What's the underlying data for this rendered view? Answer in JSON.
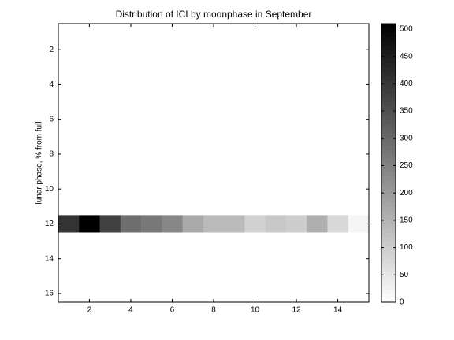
{
  "chart_data": {
    "type": "heatmap",
    "title": "Distribution of ICI by moonphase in September",
    "ylabel": "lunar phase, % from full",
    "x": [
      1,
      2,
      3,
      4,
      5,
      6,
      7,
      8,
      9,
      10,
      11,
      12,
      13,
      14,
      15
    ],
    "y": [
      1,
      2,
      3,
      4,
      5,
      6,
      7,
      8,
      9,
      10,
      11,
      12,
      13,
      14,
      15,
      16
    ],
    "z": [
      [
        0,
        0,
        0,
        0,
        0,
        0,
        0,
        0,
        0,
        0,
        0,
        0,
        0,
        0,
        0
      ],
      [
        0,
        0,
        0,
        0,
        0,
        0,
        0,
        0,
        0,
        0,
        0,
        0,
        0,
        0,
        0
      ],
      [
        0,
        0,
        0,
        0,
        0,
        0,
        0,
        0,
        0,
        0,
        0,
        0,
        0,
        0,
        0
      ],
      [
        0,
        0,
        0,
        0,
        0,
        0,
        0,
        0,
        0,
        0,
        0,
        0,
        0,
        0,
        0
      ],
      [
        0,
        0,
        0,
        0,
        0,
        0,
        0,
        0,
        0,
        0,
        0,
        0,
        0,
        0,
        0
      ],
      [
        0,
        0,
        0,
        0,
        0,
        0,
        0,
        0,
        0,
        0,
        0,
        0,
        0,
        0,
        0
      ],
      [
        0,
        0,
        0,
        0,
        0,
        0,
        0,
        0,
        0,
        0,
        0,
        0,
        0,
        0,
        0
      ],
      [
        0,
        0,
        0,
        0,
        0,
        0,
        0,
        0,
        0,
        0,
        0,
        0,
        0,
        0,
        0
      ],
      [
        0,
        0,
        0,
        0,
        0,
        0,
        0,
        0,
        0,
        0,
        0,
        0,
        0,
        0,
        0
      ],
      [
        0,
        0,
        0,
        0,
        0,
        0,
        0,
        0,
        0,
        0,
        0,
        0,
        0,
        0,
        0
      ],
      [
        0,
        0,
        0,
        0,
        0,
        0,
        0,
        0,
        0,
        0,
        0,
        0,
        0,
        0,
        0
      ],
      [
        408,
        510,
        382,
        290,
        270,
        240,
        170,
        138,
        138,
        92,
        110,
        100,
        160,
        78,
        20
      ],
      [
        0,
        0,
        0,
        0,
        0,
        0,
        0,
        0,
        0,
        0,
        0,
        0,
        0,
        0,
        0
      ],
      [
        0,
        0,
        0,
        0,
        0,
        0,
        0,
        0,
        0,
        0,
        0,
        0,
        0,
        0,
        0
      ],
      [
        0,
        0,
        0,
        0,
        0,
        0,
        0,
        0,
        0,
        0,
        0,
        0,
        0,
        0,
        0
      ],
      [
        0,
        0,
        0,
        0,
        0,
        0,
        0,
        0,
        0,
        0,
        0,
        0,
        0,
        0,
        0
      ]
    ],
    "xlim": [
      0.5,
      15.5
    ],
    "xticks": [
      2,
      4,
      6,
      8,
      10,
      12,
      14
    ],
    "ylim": [
      0.5,
      16.5
    ],
    "yticks": [
      2,
      4,
      6,
      8,
      10,
      12,
      14,
      16
    ],
    "colormap": "gray",
    "colormap_reversed": true,
    "clim": [
      0,
      510
    ],
    "cticks": [
      0,
      50,
      100,
      150,
      200,
      250,
      300,
      350,
      400,
      450,
      500
    ]
  }
}
